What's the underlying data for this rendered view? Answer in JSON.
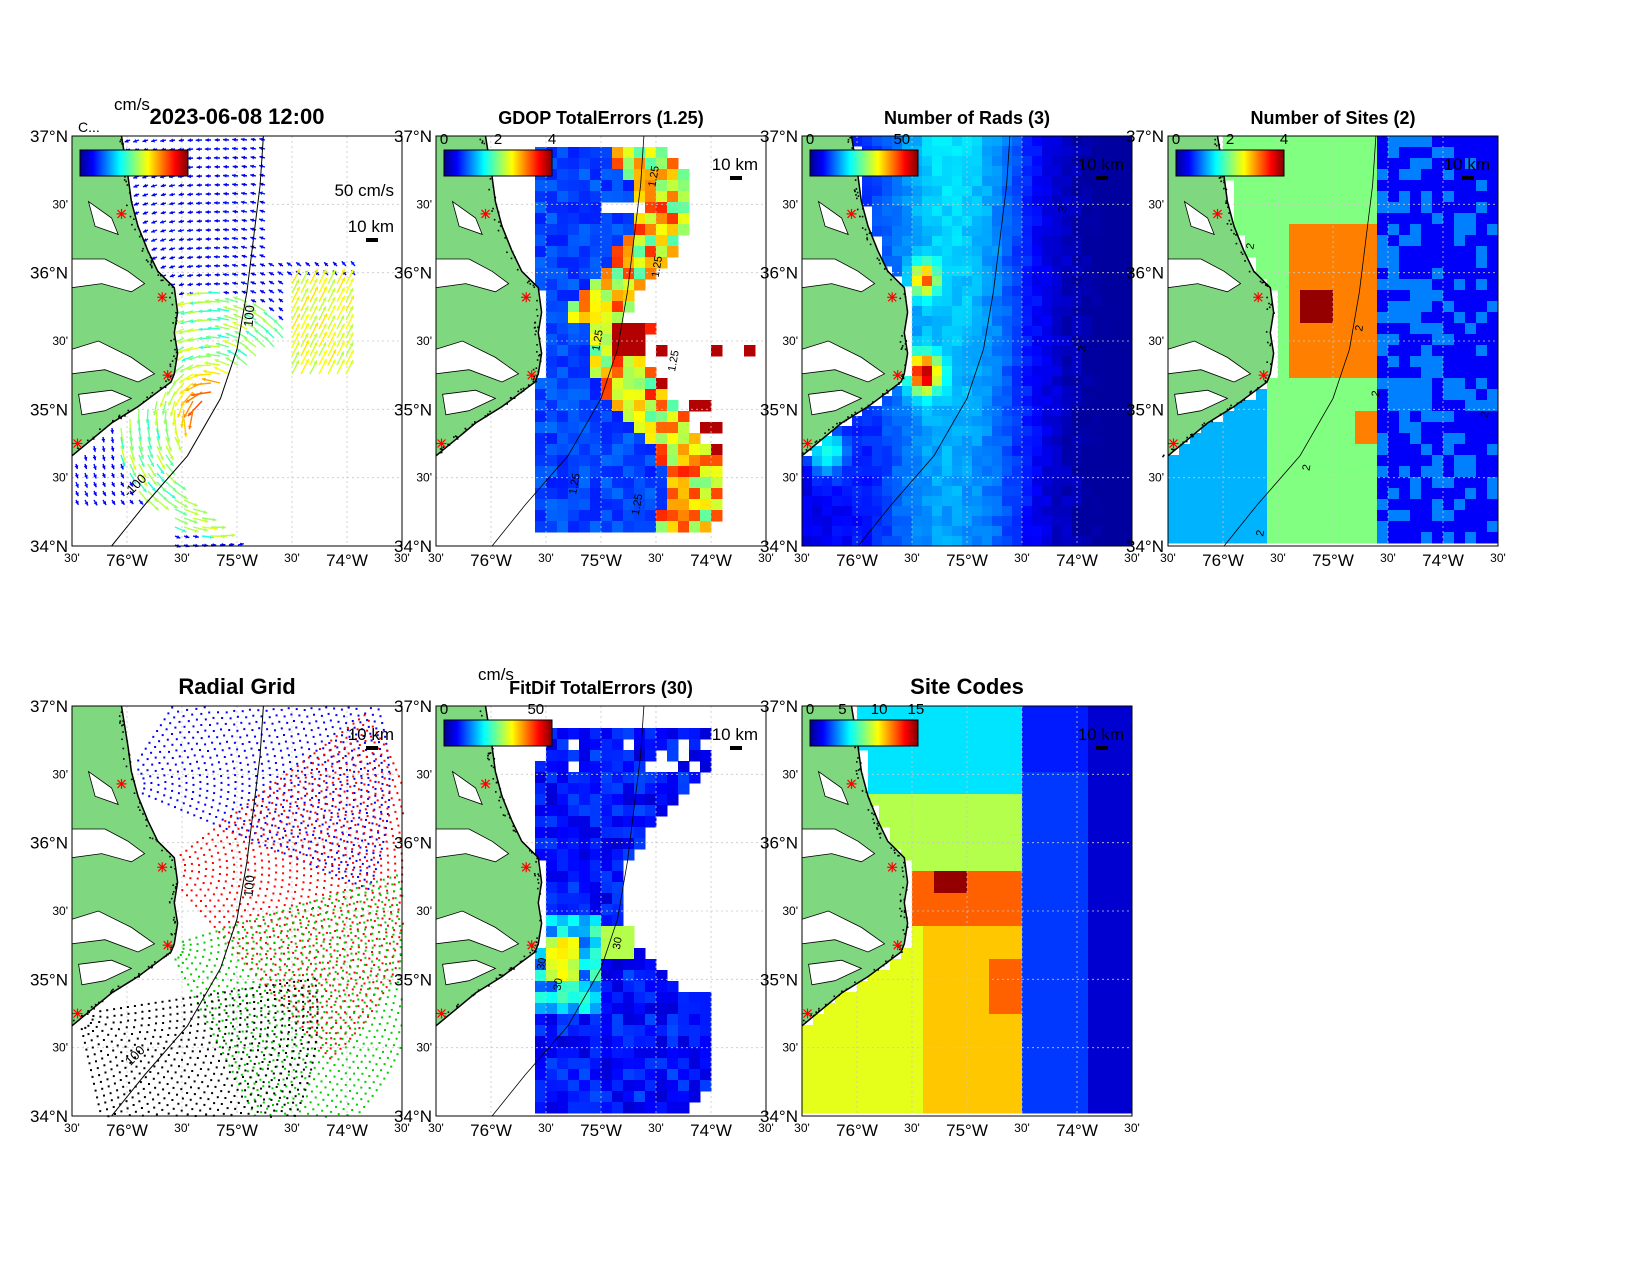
{
  "lat_ticks": [
    {
      "lat": 37.0,
      "label": "37°N",
      "major": true
    },
    {
      "lat": 36.5,
      "label": "30'",
      "major": false
    },
    {
      "lat": 36.0,
      "label": "36°N",
      "major": true
    },
    {
      "lat": 35.5,
      "label": "30'",
      "major": false
    },
    {
      "lat": 35.0,
      "label": "35°N",
      "major": true
    },
    {
      "lat": 34.5,
      "label": "30'",
      "major": false
    },
    {
      "lat": 34.0,
      "label": "34°N",
      "major": true
    }
  ],
  "lon_ticks": [
    {
      "lon": -76.5,
      "label": "30'",
      "major": false
    },
    {
      "lon": -76.0,
      "label": "76°W",
      "major": true
    },
    {
      "lon": -75.5,
      "label": "30'",
      "major": false
    },
    {
      "lon": -75.0,
      "label": "75°W",
      "major": true
    },
    {
      "lon": -74.5,
      "label": "30'",
      "major": false
    },
    {
      "lon": -74.0,
      "label": "74°W",
      "major": true
    },
    {
      "lon": -73.5,
      "label": "30'",
      "major": false
    }
  ],
  "map_extent": {
    "lon": [
      -76.5,
      -73.5
    ],
    "lat": [
      34.0,
      37.0
    ]
  },
  "colors": {
    "land": "#7fd87f",
    "coast": "#000000",
    "site_marker": "#ff0000",
    "grid": "#c8c8c8"
  },
  "sites": [
    {
      "lon": -76.05,
      "lat": 36.43
    },
    {
      "lon": -75.68,
      "lat": 35.82
    },
    {
      "lon": -75.63,
      "lat": 35.25
    },
    {
      "lon": -76.45,
      "lat": 34.75
    }
  ],
  "scale_label": "10 km",
  "panels": [
    {
      "id": "vectors",
      "title": "2023-06-08 12:00",
      "cbar_unit": "cm/s",
      "cbar_ticks": [],
      "ref_vector": "50 cm/s",
      "extra_label": "C...",
      "contour_labels": [
        "100",
        "-100"
      ]
    },
    {
      "id": "gdop",
      "title": "GDOP TotalErrors (1.25)",
      "cbar_unit": "",
      "cbar_ticks": [
        {
          "v": "0",
          "f": 0
        },
        {
          "v": "2",
          "f": 0.5
        },
        {
          "v": "4",
          "f": 1
        }
      ],
      "contour_labels": [
        "1.25",
        "1.25",
        "1.25",
        "1.25",
        "1.25",
        "1.25"
      ]
    },
    {
      "id": "nrads",
      "title": "Number of Rads (3)",
      "cbar_unit": "",
      "cbar_ticks": [
        {
          "v": "0",
          "f": 0
        },
        {
          "v": "50",
          "f": 0.85
        }
      ],
      "contour_labels": [
        "3",
        "3"
      ]
    },
    {
      "id": "nsites",
      "title": "Number of Sites (2)",
      "cbar_unit": "",
      "cbar_ticks": [
        {
          "v": "0",
          "f": 0
        },
        {
          "v": "2",
          "f": 0.5
        },
        {
          "v": "4",
          "f": 1
        }
      ],
      "contour_labels": [
        "2",
        "2",
        "2",
        "2",
        "2",
        "2"
      ]
    },
    {
      "id": "radgrid",
      "title": "Radial Grid",
      "cbar_unit": "",
      "cbar_ticks": [],
      "contour_labels": [
        "100",
        "100"
      ]
    },
    {
      "id": "fitdif",
      "title": "FitDif TotalErrors (30)",
      "cbar_unit": "cm/s",
      "cbar_ticks": [
        {
          "v": "0",
          "f": 0
        },
        {
          "v": "50",
          "f": 0.85
        }
      ],
      "contour_labels": [
        "30",
        "30",
        "30"
      ]
    },
    {
      "id": "sitecodes",
      "title": "Site Codes",
      "cbar_unit": "",
      "cbar_ticks": [
        {
          "v": "0",
          "f": 0
        },
        {
          "v": "5",
          "f": 0.3
        },
        {
          "v": "10",
          "f": 0.64
        },
        {
          "v": "15",
          "f": 0.98
        }
      ],
      "contour_labels": []
    }
  ]
}
